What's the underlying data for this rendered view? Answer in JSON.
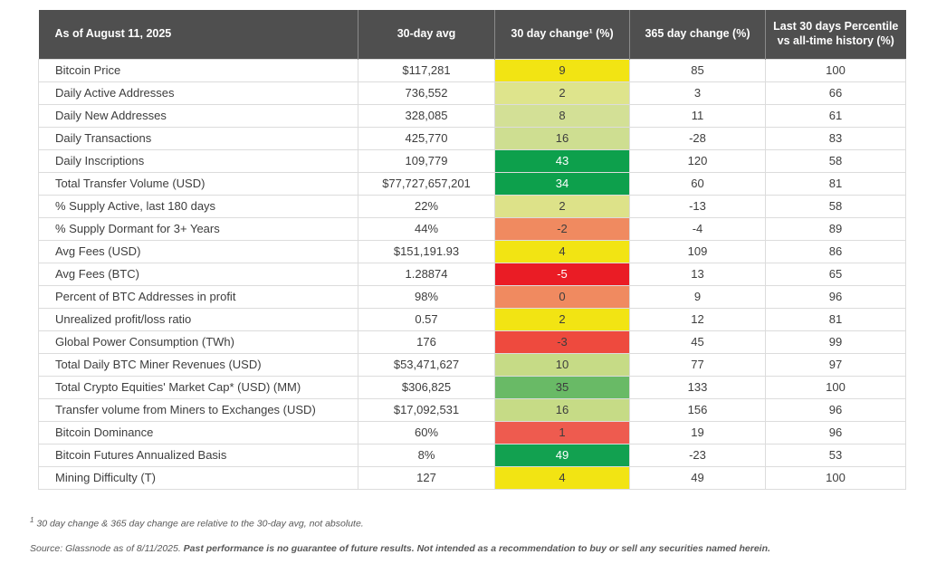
{
  "table": {
    "headers": [
      "As of August 11, 2025",
      "30-day avg",
      "30 day change¹ (%)",
      "365 day change (%)",
      "Last 30 days Percentile vs all-time history (%)"
    ],
    "rows": [
      {
        "metric": "Bitcoin Price",
        "avg": "$117,281",
        "change30": "9",
        "change30_bg": "#f2e413",
        "change30_fg": "#3d3d3d",
        "change365": "85",
        "percentile": "100"
      },
      {
        "metric": "Daily Active Addresses",
        "avg": "736,552",
        "change30": "2",
        "change30_bg": "#dee48c",
        "change30_fg": "#3d3d3d",
        "change365": "3",
        "percentile": "66"
      },
      {
        "metric": "Daily New Addresses",
        "avg": "328,085",
        "change30": "8",
        "change30_bg": "#d3e096",
        "change30_fg": "#3d3d3d",
        "change365": "11",
        "percentile": "61"
      },
      {
        "metric": "Daily Transactions",
        "avg": "425,770",
        "change30": "16",
        "change30_bg": "#cede91",
        "change30_fg": "#3d3d3d",
        "change365": "-28",
        "percentile": "83"
      },
      {
        "metric": "Daily Inscriptions",
        "avg": "109,779",
        "change30": "43",
        "change30_bg": "#0da04c",
        "change30_fg": "#ffffff",
        "change365": "120",
        "percentile": "58"
      },
      {
        "metric": "Total Transfer Volume (USD)",
        "avg": "$77,727,657,201",
        "change30": "34",
        "change30_bg": "#0da04c",
        "change30_fg": "#ffffff",
        "change365": "60",
        "percentile": "81"
      },
      {
        "metric": "% Supply Active, last 180 days",
        "avg": "22%",
        "change30": "2",
        "change30_bg": "#dde289",
        "change30_fg": "#3d3d3d",
        "change365": "-13",
        "percentile": "58"
      },
      {
        "metric": "% Supply Dormant for 3+ Years",
        "avg": "44%",
        "change30": "-2",
        "change30_bg": "#f08a60",
        "change30_fg": "#3d3d3d",
        "change365": "-4",
        "percentile": "89"
      },
      {
        "metric": "Avg Fees (USD)",
        "avg": "$151,191.93",
        "change30": "4",
        "change30_bg": "#f2e413",
        "change30_fg": "#3d3d3d",
        "change365": "109",
        "percentile": "86"
      },
      {
        "metric": "Avg Fees (BTC)",
        "avg": "1.28874",
        "change30": "-5",
        "change30_bg": "#ea1c25",
        "change30_fg": "#ffffff",
        "change365": "13",
        "percentile": "65"
      },
      {
        "metric": "Percent of BTC Addresses in profit",
        "avg": "98%",
        "change30": "0",
        "change30_bg": "#f08a60",
        "change30_fg": "#3d3d3d",
        "change365": "9",
        "percentile": "96"
      },
      {
        "metric": "Unrealized profit/loss ratio",
        "avg": "0.57",
        "change30": "2",
        "change30_bg": "#f2e413",
        "change30_fg": "#3d3d3d",
        "change365": "12",
        "percentile": "81"
      },
      {
        "metric": "Global Power Consumption (TWh)",
        "avg": "176",
        "change30": "-3",
        "change30_bg": "#ee4a3e",
        "change30_fg": "#3d3d3d",
        "change365": "45",
        "percentile": "99"
      },
      {
        "metric": "Total Daily BTC Miner Revenues (USD)",
        "avg": "$53,471,627",
        "change30": "10",
        "change30_bg": "#c6db86",
        "change30_fg": "#3d3d3d",
        "change365": "77",
        "percentile": "97"
      },
      {
        "metric": "Total Crypto Equities' Market Cap* (USD) (MM)",
        "avg": "$306,825",
        "change30": "35",
        "change30_bg": "#69ba66",
        "change30_fg": "#3d3d3d",
        "change365": "133",
        "percentile": "100"
      },
      {
        "metric": "Transfer volume from Miners to Exchanges (USD)",
        "avg": "$17,092,531",
        "change30": "16",
        "change30_bg": "#c6db86",
        "change30_fg": "#3d3d3d",
        "change365": "156",
        "percentile": "96"
      },
      {
        "metric": "Bitcoin Dominance",
        "avg": "60%",
        "change30": "1",
        "change30_bg": "#ee5b4f",
        "change30_fg": "#3d3d3d",
        "change365": "19",
        "percentile": "96"
      },
      {
        "metric": "Bitcoin Futures Annualized Basis",
        "avg": "8%",
        "change30": "49",
        "change30_bg": "#12a150",
        "change30_fg": "#ffffff",
        "change365": "-23",
        "percentile": "53"
      },
      {
        "metric": "Mining Difficulty (T)",
        "avg": "127",
        "change30": "4",
        "change30_bg": "#f2e413",
        "change30_fg": "#3d3d3d",
        "change365": "49",
        "percentile": "100"
      }
    ]
  },
  "footnotes": {
    "note1_sup": "1",
    "note1": " 30 day change & 365 day change are relative to the 30-day avg, not absolute.",
    "source_prefix": "Source: Glassnode as of 8/11/2025. ",
    "source_bold": "Past performance is no guarantee of future results. Not intended as a recommendation to buy or sell any securities named herein."
  },
  "palette": {
    "header_bg": "#4f4f4f",
    "header_text": "#ffffff",
    "body_text": "#3d3d3d",
    "grid_border": "#dcdcdc",
    "positive_strong": "#0da04c",
    "negative_strong": "#ea1c25",
    "neutral_yellow": "#f2e413"
  }
}
